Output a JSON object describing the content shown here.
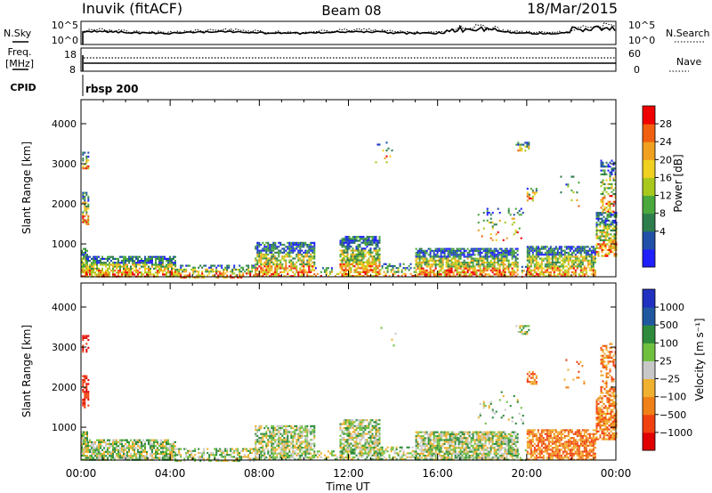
{
  "header": {
    "station": "Inuvik (fitACF)",
    "beam": "Beam 08",
    "date": "18/Mar/2015"
  },
  "noise_panel": {
    "left_label": "N.Sky",
    "left_ticks": [
      "10^5",
      "10^0"
    ],
    "right_label": "N.Search",
    "right_ticks": [
      "10^5",
      "10^0"
    ]
  },
  "freq_panel": {
    "left_label_1": "Freq.",
    "left_label_2": "[MHz]",
    "left_ticks": [
      "18",
      "8"
    ],
    "right_label": "Nave",
    "right_ticks": [
      "60",
      "0"
    ]
  },
  "cpid": {
    "label": "CPID",
    "value": "rbsp 200"
  },
  "chart_data": [
    {
      "type": "heatmap",
      "name": "power",
      "ylabel": "Slant Range [km]",
      "xlabel": "",
      "y_ticks": [
        "4000",
        "3000",
        "2000",
        "1000"
      ],
      "y_tick_values": [
        4000,
        3000,
        2000,
        1000
      ],
      "ylim": [
        180,
        4600
      ],
      "x_ticks": [
        "00:00",
        "04:00",
        "08:00",
        "12:00",
        "16:00",
        "20:00",
        "00:00"
      ],
      "xlim_hours": [
        0,
        24
      ],
      "colorbar_label": "Power [dB]",
      "colorbar_ticks": [
        "28",
        "24",
        "20",
        "16",
        "12",
        "8",
        "4"
      ],
      "colorbar_colors": [
        "#2020ff",
        "#2050a8",
        "#2e7d4d",
        "#4aa83c",
        "#a8c81e",
        "#f0d020",
        "#f0a020",
        "#f06010",
        "#f00000"
      ]
    },
    {
      "type": "heatmap",
      "name": "velocity",
      "ylabel": "Slant Range [km]",
      "xlabel": "Time UT",
      "y_ticks": [
        "4000",
        "3000",
        "2000",
        "1000"
      ],
      "y_tick_values": [
        4000,
        3000,
        2000,
        1000
      ],
      "ylim": [
        180,
        4600
      ],
      "x_ticks": [
        "00:00",
        "04:00",
        "08:00",
        "12:00",
        "16:00",
        "20:00",
        "00:00"
      ],
      "xlim_hours": [
        0,
        24
      ],
      "colorbar_label": "Velocity [m s⁻¹]",
      "colorbar_ticks": [
        "1000",
        "500",
        "100",
        "25",
        "−25",
        "−100",
        "−500",
        "−1000"
      ],
      "colorbar_colors": [
        "#e00000",
        "#f04010",
        "#f08018",
        "#f0b030",
        "#c8c8c8",
        "#70c040",
        "#2e8b3c",
        "#2058a0",
        "#2030c0"
      ]
    }
  ],
  "colors": {
    "power_scale": "red-high",
    "velocity_scale": "blue-positive"
  }
}
